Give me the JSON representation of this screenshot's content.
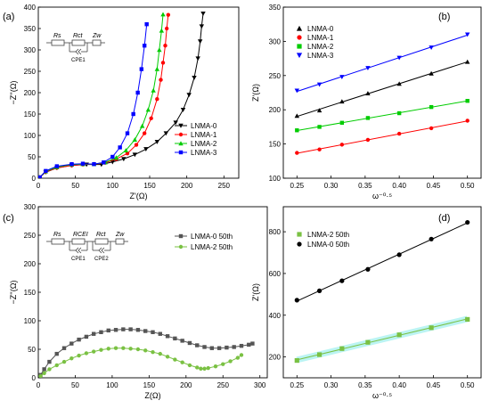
{
  "figure": {
    "panels": [
      {
        "tag": "(a)",
        "xlabel": "Z'(Ω)",
        "ylabel": "−Z''(Ω)",
        "circuit": {
          "labels": [
            "Rs",
            "Rct",
            "Zw"
          ],
          "cpe": [
            "CPE1"
          ]
        }
      },
      {
        "tag": "(b)",
        "xlabel": "ω⁻⁰·⁵",
        "ylabel": "Z'(Ω)"
      },
      {
        "tag": "(c)",
        "xlabel": "Z(Ω)",
        "ylabel": "−Z''(Ω)",
        "circuit": {
          "labels": [
            "Rs",
            "RCEI",
            "Rct",
            "Zw"
          ],
          "cpe": [
            "CPE1",
            "CPE2"
          ]
        }
      },
      {
        "tag": "(d)",
        "xlabel": "ω⁻⁰·⁵",
        "ylabel": "Z'(Ω)"
      }
    ]
  },
  "chart_data": [
    {
      "type": "scatter",
      "title": "",
      "xlabel": "Z'(Ω)",
      "ylabel": "−Z''(Ω)",
      "xlim": [
        0,
        270
      ],
      "ylim": [
        0,
        400
      ],
      "xticks": [
        0,
        50,
        100,
        150,
        200,
        250
      ],
      "yticks": [
        0,
        50,
        100,
        150,
        200,
        250,
        300,
        350,
        400
      ],
      "legend": "right",
      "series": [
        {
          "name": "LNMA-0",
          "color": "#000000",
          "marker": "triangle-down",
          "x": [
            2,
            10,
            25,
            45,
            65,
            85,
            100,
            115,
            130,
            145,
            160,
            172,
            185,
            195,
            203,
            210,
            215,
            218,
            220,
            222
          ],
          "y": [
            2,
            14,
            24,
            30,
            32,
            32,
            38,
            45,
            55,
            68,
            85,
            105,
            130,
            160,
            195,
            235,
            280,
            320,
            355,
            385
          ]
        },
        {
          "name": "LNMA-1",
          "color": "#ff0000",
          "marker": "circle",
          "x": [
            2,
            10,
            25,
            45,
            60,
            75,
            90,
            105,
            120,
            132,
            143,
            152,
            160,
            165,
            168,
            171,
            173,
            175
          ],
          "y": [
            2,
            15,
            24,
            30,
            32,
            33,
            36,
            45,
            58,
            78,
            105,
            140,
            185,
            230,
            270,
            310,
            350,
            382
          ]
        },
        {
          "name": "LNMA-2",
          "color": "#00cc00",
          "marker": "triangle-up",
          "x": [
            2,
            10,
            25,
            45,
            60,
            75,
            90,
            105,
            118,
            130,
            140,
            148,
            155,
            160,
            163,
            166,
            168
          ],
          "y": [
            2,
            16,
            26,
            32,
            33,
            33,
            37,
            48,
            65,
            90,
            122,
            160,
            205,
            255,
            300,
            345,
            383
          ]
        },
        {
          "name": "LNMA-3",
          "color": "#0000ff",
          "marker": "square",
          "x": [
            2,
            10,
            25,
            45,
            60,
            75,
            88,
            100,
            110,
            120,
            128,
            134,
            139,
            143,
            146
          ],
          "y": [
            2,
            17,
            28,
            33,
            34,
            33,
            37,
            50,
            72,
            105,
            150,
            200,
            255,
            310,
            360
          ]
        }
      ]
    },
    {
      "type": "scatter",
      "title": "",
      "xlabel": "ω⁻⁰·⁵",
      "ylabel": "Z'(Ω)",
      "xlim": [
        0.23,
        0.52
      ],
      "ylim": [
        100,
        350
      ],
      "xticks": [
        0.25,
        0.3,
        0.35,
        0.4,
        0.45,
        0.5
      ],
      "yticks": [
        100,
        150,
        200,
        250,
        300,
        350
      ],
      "legend": "top-left",
      "series": [
        {
          "name": "LNMA-0",
          "color": "#000000",
          "marker": "triangle-up",
          "x": [
            0.25,
            0.283,
            0.316,
            0.354,
            0.4,
            0.447,
            0.5
          ],
          "y": [
            191,
            199,
            212,
            224,
            238,
            253,
            270
          ]
        },
        {
          "name": "LNMA-1",
          "color": "#ff0000",
          "marker": "circle",
          "x": [
            0.25,
            0.283,
            0.316,
            0.354,
            0.4,
            0.447,
            0.5
          ],
          "y": [
            137,
            142,
            149,
            156,
            165,
            173,
            184
          ]
        },
        {
          "name": "LNMA-2",
          "color": "#00cc00",
          "marker": "square",
          "x": [
            0.25,
            0.283,
            0.316,
            0.354,
            0.4,
            0.447,
            0.5
          ],
          "y": [
            170,
            175,
            181,
            188,
            195,
            204,
            213
          ]
        },
        {
          "name": "LNMA-3",
          "color": "#0000ff",
          "marker": "triangle-down",
          "x": [
            0.25,
            0.283,
            0.316,
            0.354,
            0.4,
            0.447,
            0.5
          ],
          "y": [
            228,
            237,
            248,
            261,
            276,
            291,
            310
          ]
        }
      ]
    },
    {
      "type": "line",
      "title": "",
      "xlabel": "Z(Ω)",
      "ylabel": "−Z''(Ω)",
      "xlim": [
        0,
        310
      ],
      "ylim": [
        0,
        300
      ],
      "xticks": [
        0,
        50,
        100,
        150,
        200,
        250,
        300
      ],
      "yticks": [
        0,
        50,
        100,
        150,
        200,
        250,
        300
      ],
      "legend": "top-right",
      "series": [
        {
          "name": "LNMA-0  50th",
          "color": "#555555",
          "marker": "square",
          "x": [
            3,
            8,
            15,
            25,
            35,
            45,
            55,
            65,
            75,
            85,
            95,
            105,
            115,
            125,
            135,
            145,
            155,
            165,
            175,
            185,
            195,
            205,
            215,
            225,
            235,
            245,
            255,
            265,
            275,
            285,
            290
          ],
          "y": [
            5,
            15,
            28,
            42,
            52,
            60,
            67,
            72,
            77,
            80,
            83,
            84,
            85,
            85,
            84,
            82,
            80,
            77,
            73,
            69,
            65,
            61,
            57,
            54,
            52,
            52,
            53,
            54,
            56,
            58,
            60
          ]
        },
        {
          "name": "LNMA-2  50th",
          "color": "#7ac143",
          "marker": "circle",
          "x": [
            3,
            8,
            15,
            25,
            35,
            45,
            55,
            65,
            75,
            85,
            95,
            105,
            115,
            125,
            135,
            145,
            155,
            165,
            175,
            185,
            195,
            205,
            215,
            220,
            225,
            230,
            240,
            250,
            260,
            270,
            275
          ],
          "y": [
            3,
            8,
            15,
            22,
            28,
            34,
            39,
            43,
            46,
            49,
            51,
            52,
            52,
            51,
            50,
            48,
            45,
            42,
            37,
            32,
            27,
            22,
            18,
            16,
            16,
            17,
            20,
            24,
            29,
            35,
            40
          ]
        }
      ]
    },
    {
      "type": "scatter",
      "title": "",
      "xlabel": "ω⁻⁰·⁵",
      "ylabel": "Z'(Ω)",
      "xlim": [
        0.23,
        0.52
      ],
      "ylim": [
        100,
        920
      ],
      "xticks": [
        0.25,
        0.3,
        0.35,
        0.4,
        0.45,
        0.5
      ],
      "yticks": [
        200,
        400,
        600,
        800
      ],
      "legend": "top-left",
      "series": [
        {
          "name": "LNMA-2  50th",
          "color": "#7ac143",
          "marker": "square",
          "x": [
            0.25,
            0.283,
            0.316,
            0.354,
            0.4,
            0.447,
            0.5
          ],
          "y": [
            183,
            211,
            240,
            270,
            306,
            340,
            380
          ]
        },
        {
          "name": "LNMA-0  50th",
          "color": "#000000",
          "marker": "circle",
          "x": [
            0.25,
            0.283,
            0.316,
            0.354,
            0.4,
            0.447,
            0.5
          ],
          "y": [
            472,
            517,
            565,
            620,
            690,
            765,
            845
          ]
        }
      ]
    }
  ]
}
